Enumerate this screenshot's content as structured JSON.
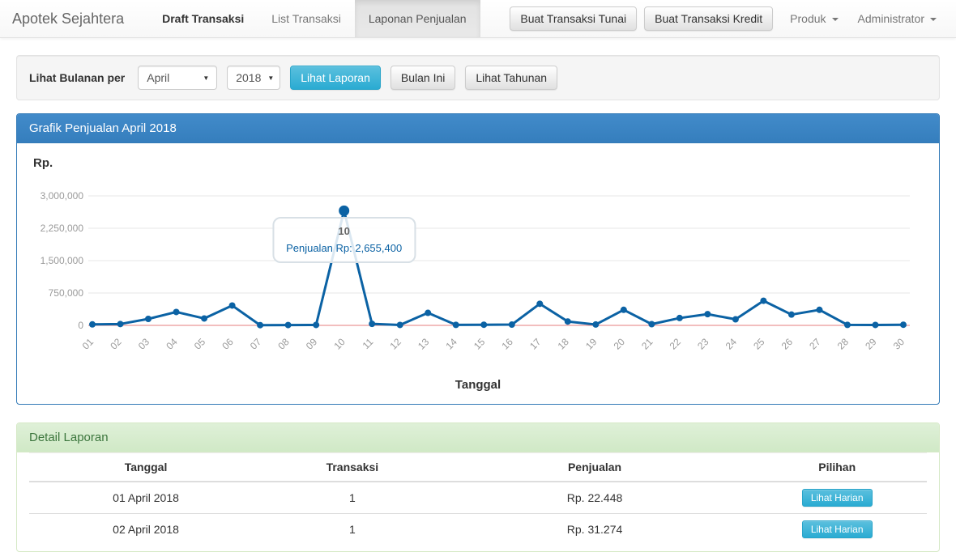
{
  "navbar": {
    "brand": "Apotek Sejahtera",
    "items": [
      {
        "label": "Draft Transaksi"
      },
      {
        "label": "List Transaksi"
      },
      {
        "label": "Laponan Penjualan"
      }
    ],
    "buttons": [
      "Buat Transaksi Tunai",
      "Buat Transaksi Kredit"
    ],
    "dropdowns": [
      "Produk",
      "Administrator"
    ]
  },
  "filter": {
    "label": "Lihat Bulanan per",
    "month_select": "April",
    "year_select": "2018",
    "submit_label": "Lihat Laporan",
    "this_month_label": "Bulan Ini",
    "yearly_label": "Lihat Tahunan"
  },
  "chart_panel": {
    "title": "Grafik Penjualan April 2018",
    "y_axis_label": "Rp.",
    "x_axis_label": "Tanggal"
  },
  "chart_data": {
    "type": "line",
    "title": "Grafik Penjualan April 2018",
    "xlabel": "Tanggal",
    "ylabel": "Rp.",
    "x": [
      "01",
      "02",
      "03",
      "04",
      "05",
      "06",
      "07",
      "08",
      "09",
      "10",
      "11",
      "12",
      "13",
      "14",
      "15",
      "16",
      "17",
      "18",
      "19",
      "20",
      "21",
      "22",
      "23",
      "24",
      "25",
      "26",
      "27",
      "28",
      "29",
      "30"
    ],
    "series": [
      {
        "name": "Penjualan",
        "values": [
          22448,
          31274,
          150000,
          310000,
          160000,
          460000,
          5000,
          8000,
          10000,
          2655400,
          35000,
          10000,
          290000,
          12000,
          15000,
          18000,
          500000,
          90000,
          20000,
          360000,
          28000,
          170000,
          260000,
          140000,
          570000,
          250000,
          360000,
          12000,
          10000,
          15000
        ]
      }
    ],
    "ylim": [
      0,
      3000000
    ],
    "y_ticks": [
      3000000,
      2250000,
      1500000,
      750000,
      0
    ],
    "y_tick_labels": [
      "3,000,000",
      "2,250,000",
      "1,500,000",
      "750,000",
      "0"
    ],
    "grid": true,
    "legend": "none",
    "line_color": "#0b62a4",
    "grid_color": "#e7e7e7",
    "zero_line_color": "#e57d7d",
    "highlight": {
      "index": 9,
      "label": "10",
      "value_text": "Penjualan Rp: 2,655,400"
    }
  },
  "detail_panel": {
    "title": "Detail Laporan",
    "table": {
      "headers": [
        "Tanggal",
        "Transaksi",
        "Penjualan",
        "Pilihan"
      ],
      "rows": [
        {
          "tanggal": "01 April 2018",
          "transaksi": "1",
          "penjualan": "Rp. 22.448",
          "action": "Lihat Harian"
        },
        {
          "tanggal": "02 April 2018",
          "transaksi": "1",
          "penjualan": "Rp. 31.274",
          "action": "Lihat Harian"
        }
      ]
    }
  }
}
